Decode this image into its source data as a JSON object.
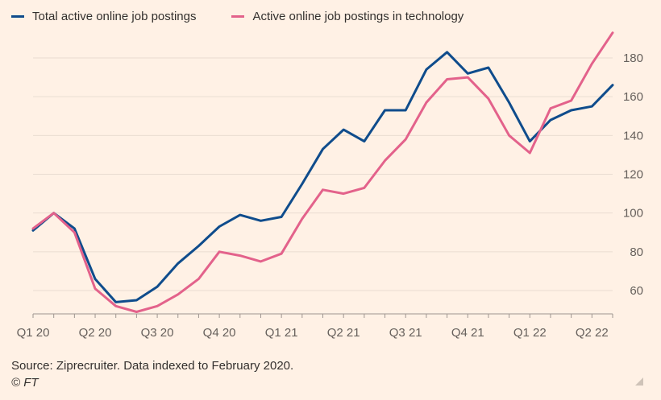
{
  "chart_data": {
    "type": "line",
    "x_ticks": [
      "Q1 20",
      "Q2 20",
      "Q3 20",
      "Q4 20",
      "Q1 21",
      "Q2 21",
      "Q3 21",
      "Q4 21",
      "Q1 22",
      "Q2 22"
    ],
    "y_ticks": [
      60,
      80,
      100,
      120,
      140,
      160,
      180
    ],
    "ylim": [
      48,
      196
    ],
    "grid": "horizontal",
    "legend_position": "top-left",
    "series": [
      {
        "name": "Total active online job postings",
        "color": "#0f4c8c",
        "values": [
          91,
          100,
          92,
          66,
          54,
          55,
          62,
          74,
          83,
          93,
          99,
          96,
          98,
          115,
          133,
          143,
          137,
          153,
          153,
          174,
          183,
          172,
          175,
          157,
          137,
          148,
          153,
          155,
          166
        ]
      },
      {
        "name": "Active online job postings in technology",
        "color": "#e3628b",
        "values": [
          92,
          100,
          90,
          61,
          52,
          49,
          52,
          58,
          66,
          80,
          78,
          75,
          79,
          97,
          112,
          110,
          113,
          127,
          138,
          157,
          169,
          170,
          159,
          140,
          131,
          154,
          158,
          177,
          193
        ]
      }
    ]
  },
  "source": "Source: Ziprecruiter. Data indexed to February 2020.",
  "copyright": "© FT"
}
